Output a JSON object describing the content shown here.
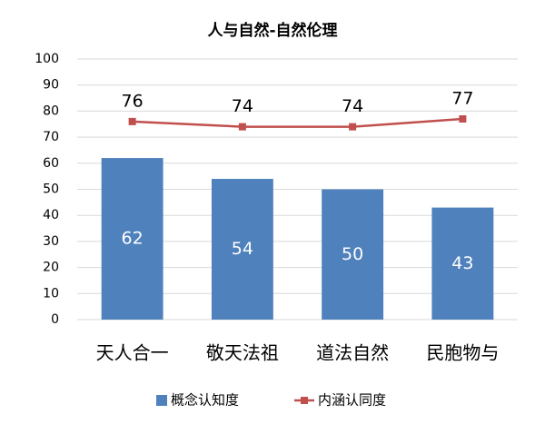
{
  "chart_data": {
    "type": "bar",
    "title": "人与自然-自然伦理",
    "categories": [
      "天人合一",
      "敬天法祖",
      "道法自然",
      "民胞物与"
    ],
    "series": [
      {
        "name": "概念认知度",
        "type": "bar",
        "color": "#4f81bd",
        "values": [
          62,
          54,
          50,
          43
        ]
      },
      {
        "name": "内涵认同度",
        "type": "line",
        "color": "#c0504d",
        "values": [
          76,
          74,
          74,
          77
        ]
      }
    ],
    "ylim": [
      0,
      100
    ],
    "yticks": [
      0,
      10,
      20,
      30,
      40,
      50,
      60,
      70,
      80,
      90,
      100
    ],
    "grid": true,
    "legend": "bottom"
  }
}
